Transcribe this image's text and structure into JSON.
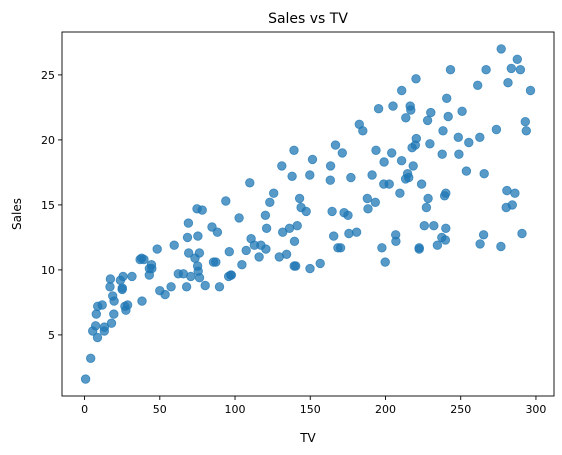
{
  "chart_data": {
    "type": "scatter",
    "title": "Sales vs TV",
    "xlabel": "TV",
    "ylabel": "Sales",
    "xlim": [
      -15,
      312
    ],
    "ylim": [
      0.3,
      28.3
    ],
    "xticks": [
      0,
      50,
      100,
      150,
      200,
      250,
      300
    ],
    "yticks": [
      5,
      10,
      15,
      20,
      25
    ],
    "grid": false,
    "legend": "none",
    "point_color": "#1f77b4",
    "point_alpha": 0.75,
    "points": [
      [
        0.7,
        1.6
      ],
      [
        4.1,
        3.2
      ],
      [
        5.4,
        5.3
      ],
      [
        7.3,
        5.7
      ],
      [
        7.8,
        6.6
      ],
      [
        8.6,
        4.8
      ],
      [
        8.7,
        7.2
      ],
      [
        11.7,
        7.3
      ],
      [
        13.1,
        5.3
      ],
      [
        13.2,
        5.6
      ],
      [
        16.9,
        8.7
      ],
      [
        17.2,
        9.3
      ],
      [
        17.9,
        5.9
      ],
      [
        18.7,
        8.0
      ],
      [
        19.4,
        6.6
      ],
      [
        19.6,
        7.6
      ],
      [
        23.8,
        9.2
      ],
      [
        25.0,
        8.5
      ],
      [
        25.1,
        8.6
      ],
      [
        25.6,
        9.5
      ],
      [
        26.8,
        7.2
      ],
      [
        27.5,
        6.9
      ],
      [
        28.6,
        7.3
      ],
      [
        31.5,
        9.5
      ],
      [
        36.9,
        10.8
      ],
      [
        38.0,
        10.9
      ],
      [
        38.2,
        7.6
      ],
      [
        39.5,
        10.8
      ],
      [
        43.0,
        9.6
      ],
      [
        43.1,
        10.1
      ],
      [
        44.5,
        10.4
      ],
      [
        44.7,
        10.1
      ],
      [
        48.3,
        11.6
      ],
      [
        50.0,
        8.4
      ],
      [
        53.5,
        8.1
      ],
      [
        57.5,
        8.7
      ],
      [
        59.6,
        11.9
      ],
      [
        62.3,
        9.7
      ],
      [
        65.7,
        9.7
      ],
      [
        67.8,
        8.7
      ],
      [
        68.4,
        12.5
      ],
      [
        69.0,
        13.6
      ],
      [
        69.2,
        11.3
      ],
      [
        70.6,
        9.5
      ],
      [
        73.4,
        10.9
      ],
      [
        74.7,
        14.7
      ],
      [
        75.1,
        10.3
      ],
      [
        75.3,
        12.6
      ],
      [
        75.5,
        9.9
      ],
      [
        76.3,
        11.3
      ],
      [
        76.4,
        9.4
      ],
      [
        78.2,
        14.6
      ],
      [
        80.2,
        8.8
      ],
      [
        84.7,
        13.3
      ],
      [
        85.7,
        10.6
      ],
      [
        87.2,
        10.6
      ],
      [
        88.3,
        12.9
      ],
      [
        89.7,
        8.7
      ],
      [
        93.9,
        15.3
      ],
      [
        95.7,
        9.5
      ],
      [
        96.2,
        11.4
      ],
      [
        97.2,
        9.6
      ],
      [
        97.5,
        9.6
      ],
      [
        102.7,
        14.0
      ],
      [
        104.6,
        10.4
      ],
      [
        107.4,
        11.5
      ],
      [
        109.8,
        16.7
      ],
      [
        110.7,
        12.4
      ],
      [
        112.9,
        11.9
      ],
      [
        116.0,
        11.0
      ],
      [
        117.2,
        11.9
      ],
      [
        120.2,
        14.2
      ],
      [
        120.5,
        11.6
      ],
      [
        121.0,
        13.2
      ],
      [
        123.1,
        15.2
      ],
      [
        125.7,
        15.9
      ],
      [
        129.4,
        11.0
      ],
      [
        131.1,
        18.0
      ],
      [
        131.7,
        12.9
      ],
      [
        134.3,
        11.2
      ],
      [
        136.2,
        13.2
      ],
      [
        137.9,
        17.2
      ],
      [
        139.2,
        19.2
      ],
      [
        139.3,
        10.3
      ],
      [
        139.5,
        12.2
      ],
      [
        140.3,
        10.3
      ],
      [
        141.3,
        13.4
      ],
      [
        142.9,
        15.5
      ],
      [
        143.9,
        14.8
      ],
      [
        147.3,
        14.5
      ],
      [
        149.7,
        17.3
      ],
      [
        149.8,
        10.1
      ],
      [
        151.5,
        18.5
      ],
      [
        156.6,
        10.5
      ],
      [
        163.3,
        16.9
      ],
      [
        163.5,
        18.0
      ],
      [
        164.5,
        14.5
      ],
      [
        165.6,
        12.6
      ],
      [
        166.8,
        19.6
      ],
      [
        168.4,
        11.7
      ],
      [
        170.2,
        11.7
      ],
      [
        171.3,
        19.0
      ],
      [
        172.5,
        14.4
      ],
      [
        175.1,
        14.2
      ],
      [
        175.7,
        12.8
      ],
      [
        177.0,
        17.1
      ],
      [
        180.8,
        12.9
      ],
      [
        182.6,
        21.2
      ],
      [
        184.9,
        20.7
      ],
      [
        187.9,
        15.5
      ],
      [
        188.4,
        14.7
      ],
      [
        191.1,
        17.3
      ],
      [
        193.2,
        15.2
      ],
      [
        193.7,
        19.2
      ],
      [
        195.4,
        22.4
      ],
      [
        197.6,
        11.7
      ],
      [
        198.9,
        16.6
      ],
      [
        199.1,
        18.3
      ],
      [
        199.8,
        10.6
      ],
      [
        202.5,
        16.6
      ],
      [
        204.1,
        19.0
      ],
      [
        205.0,
        22.6
      ],
      [
        206.9,
        12.2
      ],
      [
        206.8,
        12.7
      ],
      [
        209.6,
        15.9
      ],
      [
        210.7,
        18.4
      ],
      [
        210.8,
        23.8
      ],
      [
        213.4,
        17.0
      ],
      [
        213.5,
        21.7
      ],
      [
        214.7,
        17.4
      ],
      [
        215.4,
        17.1
      ],
      [
        216.4,
        22.6
      ],
      [
        216.8,
        22.3
      ],
      [
        217.7,
        19.4
      ],
      [
        218.4,
        18.0
      ],
      [
        219.8,
        19.6
      ],
      [
        220.3,
        24.7
      ],
      [
        220.5,
        20.1
      ],
      [
        222.4,
        11.6
      ],
      [
        222.4,
        11.7
      ],
      [
        224.0,
        16.6
      ],
      [
        225.8,
        13.4
      ],
      [
        227.2,
        14.8
      ],
      [
        228.0,
        21.5
      ],
      [
        228.3,
        15.5
      ],
      [
        229.5,
        19.7
      ],
      [
        230.1,
        22.1
      ],
      [
        232.1,
        13.4
      ],
      [
        234.5,
        11.9
      ],
      [
        237.4,
        12.5
      ],
      [
        237.7,
        18.9
      ],
      [
        238.2,
        20.7
      ],
      [
        239.3,
        15.7
      ],
      [
        239.8,
        12.3
      ],
      [
        240.1,
        13.2
      ],
      [
        240.1,
        15.9
      ],
      [
        240.7,
        23.2
      ],
      [
        241.7,
        21.8
      ],
      [
        243.2,
        25.4
      ],
      [
        248.4,
        20.2
      ],
      [
        248.8,
        18.9
      ],
      [
        250.9,
        22.2
      ],
      [
        253.8,
        17.6
      ],
      [
        255.4,
        19.8
      ],
      [
        261.3,
        24.2
      ],
      [
        262.7,
        20.2
      ],
      [
        262.9,
        12.0
      ],
      [
        265.2,
        12.7
      ],
      [
        265.6,
        17.4
      ],
      [
        266.9,
        25.4
      ],
      [
        273.7,
        20.8
      ],
      [
        276.7,
        11.8
      ],
      [
        276.9,
        27.0
      ],
      [
        280.2,
        14.8
      ],
      [
        280.7,
        16.1
      ],
      [
        281.4,
        24.4
      ],
      [
        283.6,
        25.5
      ],
      [
        284.3,
        15.0
      ],
      [
        286.0,
        15.9
      ],
      [
        287.6,
        26.2
      ],
      [
        289.7,
        25.4
      ],
      [
        290.7,
        12.8
      ],
      [
        292.9,
        21.4
      ],
      [
        293.6,
        20.7
      ],
      [
        296.4,
        23.8
      ]
    ]
  }
}
